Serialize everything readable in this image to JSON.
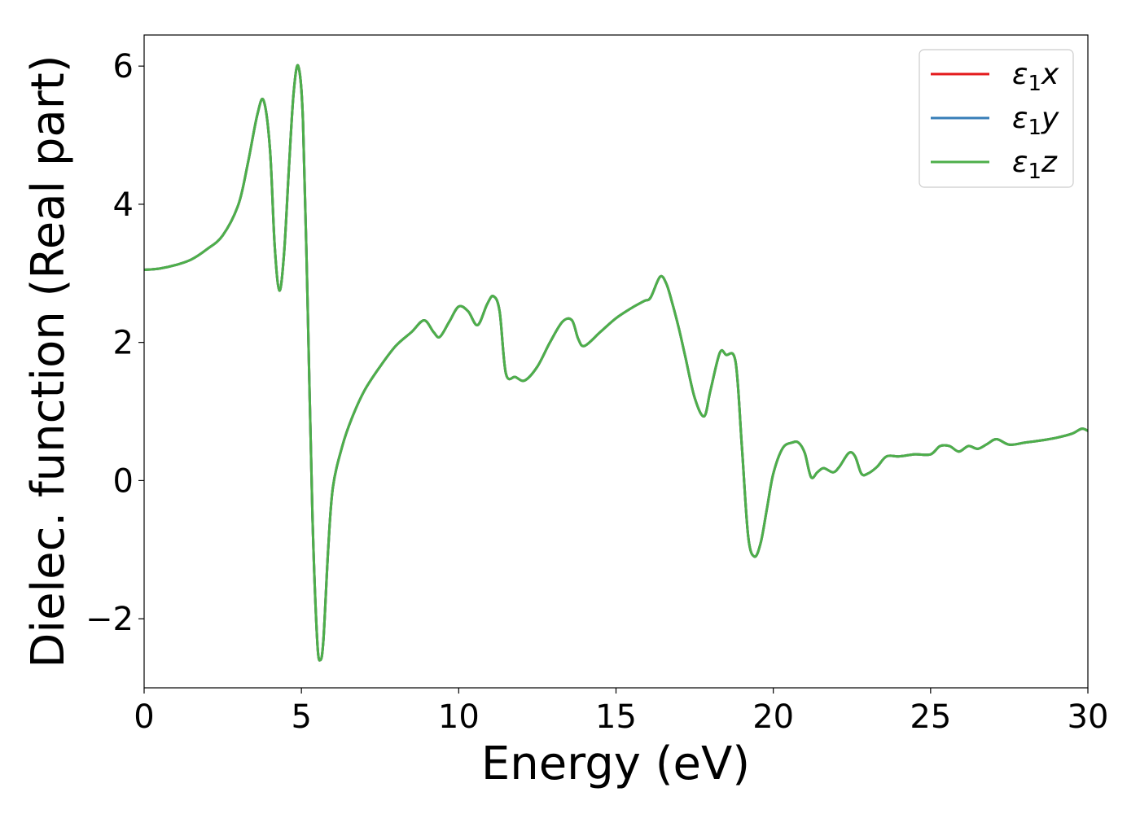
{
  "chart_data": {
    "type": "line",
    "title": "",
    "xlabel": "Energy (eV)",
    "ylabel": "Dielec. function (Real part)",
    "xlim": [
      0,
      30
    ],
    "ylim": [
      -3,
      6.45
    ],
    "xticks": [
      0,
      5,
      10,
      15,
      20,
      25,
      30
    ],
    "yticks": [
      -2,
      0,
      2,
      4,
      6
    ],
    "xtick_labels": [
      "0",
      "5",
      "10",
      "15",
      "20",
      "25",
      "30"
    ],
    "ytick_labels": [
      "−2",
      "0",
      "2",
      "4",
      "6"
    ],
    "grid": false,
    "legend_position": "top-right",
    "series": [
      {
        "name": "ε1x",
        "color": "#e41a1c",
        "x": [
          0,
          0.5,
          1,
          1.5,
          2,
          2.5,
          3,
          3.3,
          3.6,
          3.8,
          4,
          4.15,
          4.3,
          4.45,
          4.6,
          4.75,
          4.9,
          5.05,
          5.2,
          5.35,
          5.5,
          5.6,
          5.7,
          5.85,
          6,
          6.3,
          6.6,
          7,
          7.5,
          8,
          8.5,
          8.9,
          9.2,
          9.4,
          9.7,
          10,
          10.3,
          10.6,
          10.9,
          11.1,
          11.3,
          11.5,
          11.8,
          12.1,
          12.5,
          12.9,
          13.3,
          13.6,
          13.8,
          14,
          14.5,
          15,
          15.5,
          15.9,
          16.1,
          16.4,
          16.6,
          16.8,
          17,
          17.2,
          17.5,
          17.8,
          18,
          18.3,
          18.5,
          18.8,
          19,
          19.2,
          19.4,
          19.6,
          19.8,
          20,
          20.3,
          20.6,
          20.8,
          21,
          21.2,
          21.4,
          21.6,
          21.9,
          22.1,
          22.4,
          22.6,
          22.8,
          23,
          23.3,
          23.6,
          24,
          24.5,
          25,
          25.3,
          25.6,
          25.9,
          26.2,
          26.5,
          26.8,
          27.1,
          27.5,
          28,
          28.5,
          29,
          29.5,
          29.8,
          30
        ],
        "y": [
          3.05,
          3.07,
          3.12,
          3.2,
          3.35,
          3.55,
          4.0,
          4.6,
          5.3,
          5.5,
          4.8,
          3.4,
          2.75,
          3.3,
          4.5,
          5.6,
          6.0,
          5.2,
          2.5,
          -0.5,
          -2.3,
          -2.6,
          -2.3,
          -1.0,
          -0.1,
          0.5,
          0.9,
          1.3,
          1.65,
          1.95,
          2.15,
          2.32,
          2.15,
          2.08,
          2.3,
          2.52,
          2.45,
          2.25,
          2.55,
          2.67,
          2.45,
          1.55,
          1.5,
          1.45,
          1.65,
          2.0,
          2.3,
          2.32,
          2.05,
          1.95,
          2.15,
          2.35,
          2.5,
          2.6,
          2.65,
          2.95,
          2.85,
          2.55,
          2.2,
          1.8,
          1.2,
          0.93,
          1.3,
          1.85,
          1.82,
          1.72,
          0.5,
          -0.8,
          -1.1,
          -0.9,
          -0.4,
          0.1,
          0.47,
          0.55,
          0.55,
          0.4,
          0.05,
          0.12,
          0.18,
          0.12,
          0.2,
          0.4,
          0.35,
          0.1,
          0.1,
          0.2,
          0.35,
          0.35,
          0.38,
          0.38,
          0.5,
          0.5,
          0.42,
          0.5,
          0.46,
          0.53,
          0.6,
          0.52,
          0.55,
          0.58,
          0.62,
          0.68,
          0.75,
          0.72
        ]
      },
      {
        "name": "ε1y",
        "color": "#377eb8",
        "x": [
          0,
          0.5,
          1,
          1.5,
          2,
          2.5,
          3,
          3.3,
          3.6,
          3.8,
          4,
          4.15,
          4.3,
          4.45,
          4.6,
          4.75,
          4.9,
          5.05,
          5.2,
          5.35,
          5.5,
          5.6,
          5.7,
          5.85,
          6,
          6.3,
          6.6,
          7,
          7.5,
          8,
          8.5,
          8.9,
          9.2,
          9.4,
          9.7,
          10,
          10.3,
          10.6,
          10.9,
          11.1,
          11.3,
          11.5,
          11.8,
          12.1,
          12.5,
          12.9,
          13.3,
          13.6,
          13.8,
          14,
          14.5,
          15,
          15.5,
          15.9,
          16.1,
          16.4,
          16.6,
          16.8,
          17,
          17.2,
          17.5,
          17.8,
          18,
          18.3,
          18.5,
          18.8,
          19,
          19.2,
          19.4,
          19.6,
          19.8,
          20,
          20.3,
          20.6,
          20.8,
          21,
          21.2,
          21.4,
          21.6,
          21.9,
          22.1,
          22.4,
          22.6,
          22.8,
          23,
          23.3,
          23.6,
          24,
          24.5,
          25,
          25.3,
          25.6,
          25.9,
          26.2,
          26.5,
          26.8,
          27.1,
          27.5,
          28,
          28.5,
          29,
          29.5,
          29.8,
          30
        ],
        "y": [
          3.05,
          3.07,
          3.12,
          3.2,
          3.35,
          3.55,
          4.0,
          4.6,
          5.3,
          5.5,
          4.8,
          3.4,
          2.75,
          3.3,
          4.5,
          5.6,
          6.0,
          5.2,
          2.5,
          -0.5,
          -2.3,
          -2.6,
          -2.3,
          -1.0,
          -0.1,
          0.5,
          0.9,
          1.3,
          1.65,
          1.95,
          2.15,
          2.32,
          2.15,
          2.08,
          2.3,
          2.52,
          2.45,
          2.25,
          2.55,
          2.67,
          2.45,
          1.55,
          1.5,
          1.45,
          1.65,
          2.0,
          2.3,
          2.32,
          2.05,
          1.95,
          2.15,
          2.35,
          2.5,
          2.6,
          2.65,
          2.95,
          2.85,
          2.55,
          2.2,
          1.8,
          1.2,
          0.93,
          1.3,
          1.85,
          1.82,
          1.72,
          0.5,
          -0.8,
          -1.1,
          -0.9,
          -0.4,
          0.1,
          0.47,
          0.55,
          0.55,
          0.4,
          0.05,
          0.12,
          0.18,
          0.12,
          0.2,
          0.4,
          0.35,
          0.1,
          0.1,
          0.2,
          0.35,
          0.35,
          0.38,
          0.38,
          0.5,
          0.5,
          0.42,
          0.5,
          0.46,
          0.53,
          0.6,
          0.52,
          0.55,
          0.58,
          0.62,
          0.68,
          0.75,
          0.72
        ]
      },
      {
        "name": "ε1z",
        "color": "#4daf4a",
        "x": [
          0,
          0.5,
          1,
          1.5,
          2,
          2.5,
          3,
          3.3,
          3.6,
          3.8,
          4,
          4.15,
          4.3,
          4.45,
          4.6,
          4.75,
          4.9,
          5.05,
          5.2,
          5.35,
          5.5,
          5.6,
          5.7,
          5.85,
          6,
          6.3,
          6.6,
          7,
          7.5,
          8,
          8.5,
          8.9,
          9.2,
          9.4,
          9.7,
          10,
          10.3,
          10.6,
          10.9,
          11.1,
          11.3,
          11.5,
          11.8,
          12.1,
          12.5,
          12.9,
          13.3,
          13.6,
          13.8,
          14,
          14.5,
          15,
          15.5,
          15.9,
          16.1,
          16.4,
          16.6,
          16.8,
          17,
          17.2,
          17.5,
          17.8,
          18,
          18.3,
          18.5,
          18.8,
          19,
          19.2,
          19.4,
          19.6,
          19.8,
          20,
          20.3,
          20.6,
          20.8,
          21,
          21.2,
          21.4,
          21.6,
          21.9,
          22.1,
          22.4,
          22.6,
          22.8,
          23,
          23.3,
          23.6,
          24,
          24.5,
          25,
          25.3,
          25.6,
          25.9,
          26.2,
          26.5,
          26.8,
          27.1,
          27.5,
          28,
          28.5,
          29,
          29.5,
          29.8,
          30
        ],
        "y": [
          3.05,
          3.07,
          3.12,
          3.2,
          3.35,
          3.55,
          4.0,
          4.6,
          5.3,
          5.5,
          4.8,
          3.4,
          2.75,
          3.3,
          4.5,
          5.6,
          6.0,
          5.2,
          2.5,
          -0.5,
          -2.3,
          -2.6,
          -2.3,
          -1.0,
          -0.1,
          0.5,
          0.9,
          1.3,
          1.65,
          1.95,
          2.15,
          2.32,
          2.15,
          2.08,
          2.3,
          2.52,
          2.45,
          2.25,
          2.55,
          2.67,
          2.45,
          1.55,
          1.5,
          1.45,
          1.65,
          2.0,
          2.3,
          2.32,
          2.05,
          1.95,
          2.15,
          2.35,
          2.5,
          2.6,
          2.65,
          2.95,
          2.85,
          2.55,
          2.2,
          1.8,
          1.2,
          0.93,
          1.3,
          1.85,
          1.82,
          1.72,
          0.5,
          -0.8,
          -1.1,
          -0.9,
          -0.4,
          0.1,
          0.47,
          0.55,
          0.55,
          0.4,
          0.05,
          0.12,
          0.18,
          0.12,
          0.2,
          0.4,
          0.35,
          0.1,
          0.1,
          0.2,
          0.35,
          0.35,
          0.38,
          0.38,
          0.5,
          0.5,
          0.42,
          0.5,
          0.46,
          0.53,
          0.6,
          0.52,
          0.55,
          0.58,
          0.62,
          0.68,
          0.75,
          0.72
        ]
      }
    ]
  }
}
